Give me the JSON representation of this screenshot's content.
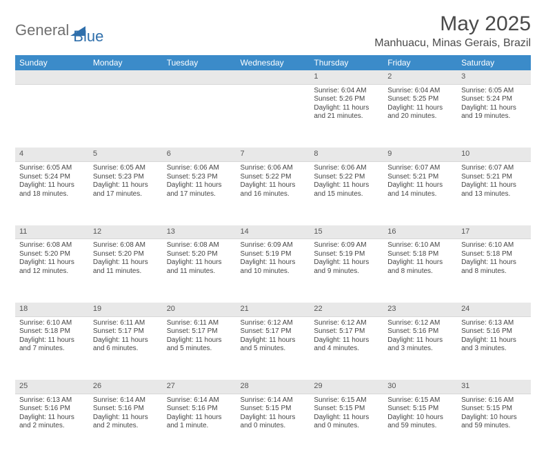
{
  "logo": {
    "word1": "General",
    "word2": "Blue"
  },
  "title": "May 2025",
  "location": "Manhuacu, Minas Gerais, Brazil",
  "colors": {
    "header_bg": "#3b8bc9",
    "header_fg": "#ffffff",
    "daynum_bg": "#e8e8e8",
    "daynum_fg": "#555555",
    "body_fg": "#444444",
    "page_bg": "#ffffff",
    "logo_gray": "#6f6f6f",
    "logo_blue": "#2f6fab"
  },
  "weekdays": [
    "Sunday",
    "Monday",
    "Tuesday",
    "Wednesday",
    "Thursday",
    "Friday",
    "Saturday"
  ],
  "weeks": [
    [
      null,
      null,
      null,
      null,
      {
        "n": "1",
        "sr": "6:04 AM",
        "ss": "5:26 PM",
        "dl": "11 hours and 21 minutes."
      },
      {
        "n": "2",
        "sr": "6:04 AM",
        "ss": "5:25 PM",
        "dl": "11 hours and 20 minutes."
      },
      {
        "n": "3",
        "sr": "6:05 AM",
        "ss": "5:24 PM",
        "dl": "11 hours and 19 minutes."
      }
    ],
    [
      {
        "n": "4",
        "sr": "6:05 AM",
        "ss": "5:24 PM",
        "dl": "11 hours and 18 minutes."
      },
      {
        "n": "5",
        "sr": "6:05 AM",
        "ss": "5:23 PM",
        "dl": "11 hours and 17 minutes."
      },
      {
        "n": "6",
        "sr": "6:06 AM",
        "ss": "5:23 PM",
        "dl": "11 hours and 17 minutes."
      },
      {
        "n": "7",
        "sr": "6:06 AM",
        "ss": "5:22 PM",
        "dl": "11 hours and 16 minutes."
      },
      {
        "n": "8",
        "sr": "6:06 AM",
        "ss": "5:22 PM",
        "dl": "11 hours and 15 minutes."
      },
      {
        "n": "9",
        "sr": "6:07 AM",
        "ss": "5:21 PM",
        "dl": "11 hours and 14 minutes."
      },
      {
        "n": "10",
        "sr": "6:07 AM",
        "ss": "5:21 PM",
        "dl": "11 hours and 13 minutes."
      }
    ],
    [
      {
        "n": "11",
        "sr": "6:08 AM",
        "ss": "5:20 PM",
        "dl": "11 hours and 12 minutes."
      },
      {
        "n": "12",
        "sr": "6:08 AM",
        "ss": "5:20 PM",
        "dl": "11 hours and 11 minutes."
      },
      {
        "n": "13",
        "sr": "6:08 AM",
        "ss": "5:20 PM",
        "dl": "11 hours and 11 minutes."
      },
      {
        "n": "14",
        "sr": "6:09 AM",
        "ss": "5:19 PM",
        "dl": "11 hours and 10 minutes."
      },
      {
        "n": "15",
        "sr": "6:09 AM",
        "ss": "5:19 PM",
        "dl": "11 hours and 9 minutes."
      },
      {
        "n": "16",
        "sr": "6:10 AM",
        "ss": "5:18 PM",
        "dl": "11 hours and 8 minutes."
      },
      {
        "n": "17",
        "sr": "6:10 AM",
        "ss": "5:18 PM",
        "dl": "11 hours and 8 minutes."
      }
    ],
    [
      {
        "n": "18",
        "sr": "6:10 AM",
        "ss": "5:18 PM",
        "dl": "11 hours and 7 minutes."
      },
      {
        "n": "19",
        "sr": "6:11 AM",
        "ss": "5:17 PM",
        "dl": "11 hours and 6 minutes."
      },
      {
        "n": "20",
        "sr": "6:11 AM",
        "ss": "5:17 PM",
        "dl": "11 hours and 5 minutes."
      },
      {
        "n": "21",
        "sr": "6:12 AM",
        "ss": "5:17 PM",
        "dl": "11 hours and 5 minutes."
      },
      {
        "n": "22",
        "sr": "6:12 AM",
        "ss": "5:17 PM",
        "dl": "11 hours and 4 minutes."
      },
      {
        "n": "23",
        "sr": "6:12 AM",
        "ss": "5:16 PM",
        "dl": "11 hours and 3 minutes."
      },
      {
        "n": "24",
        "sr": "6:13 AM",
        "ss": "5:16 PM",
        "dl": "11 hours and 3 minutes."
      }
    ],
    [
      {
        "n": "25",
        "sr": "6:13 AM",
        "ss": "5:16 PM",
        "dl": "11 hours and 2 minutes."
      },
      {
        "n": "26",
        "sr": "6:14 AM",
        "ss": "5:16 PM",
        "dl": "11 hours and 2 minutes."
      },
      {
        "n": "27",
        "sr": "6:14 AM",
        "ss": "5:16 PM",
        "dl": "11 hours and 1 minute."
      },
      {
        "n": "28",
        "sr": "6:14 AM",
        "ss": "5:15 PM",
        "dl": "11 hours and 0 minutes."
      },
      {
        "n": "29",
        "sr": "6:15 AM",
        "ss": "5:15 PM",
        "dl": "11 hours and 0 minutes."
      },
      {
        "n": "30",
        "sr": "6:15 AM",
        "ss": "5:15 PM",
        "dl": "10 hours and 59 minutes."
      },
      {
        "n": "31",
        "sr": "6:16 AM",
        "ss": "5:15 PM",
        "dl": "10 hours and 59 minutes."
      }
    ]
  ],
  "labels": {
    "sunrise": "Sunrise: ",
    "sunset": "Sunset: ",
    "daylight": "Daylight: "
  }
}
